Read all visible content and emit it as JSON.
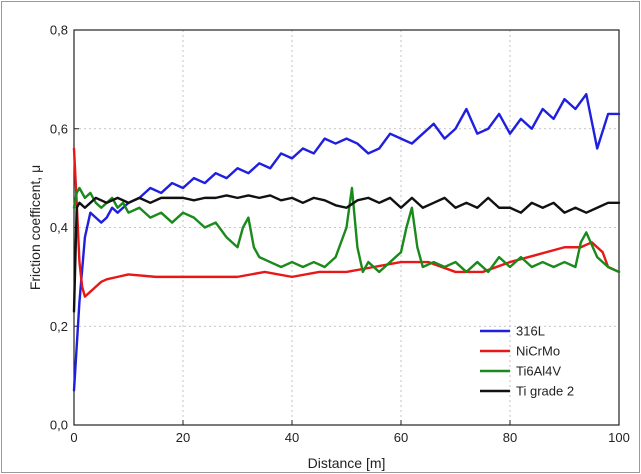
{
  "chart_data": {
    "type": "line",
    "title": "",
    "xlabel": "Distance [m]",
    "ylabel": "Friction coefficent, μ",
    "xlim": [
      0,
      100
    ],
    "ylim": [
      0,
      0.8
    ],
    "xticks": [
      0,
      20,
      40,
      60,
      80,
      100
    ],
    "xtick_labels": [
      "0",
      "20",
      "40",
      "60",
      "80",
      "100"
    ],
    "yticks": [
      0,
      0.2,
      0.4,
      0.6,
      0.8
    ],
    "ytick_labels": [
      "0,0",
      "0,2",
      "0,4",
      "0,6",
      "0,8"
    ],
    "grid": "dashed",
    "legend_position": "bottom-right",
    "series": [
      {
        "name": "316L",
        "color": "#1f1fe0",
        "x": [
          0,
          1,
          2,
          3,
          4,
          5,
          6,
          7,
          8,
          9,
          10,
          12,
          14,
          16,
          18,
          20,
          22,
          24,
          26,
          28,
          30,
          32,
          34,
          36,
          38,
          40,
          42,
          44,
          46,
          48,
          50,
          52,
          54,
          56,
          58,
          60,
          62,
          64,
          66,
          68,
          70,
          72,
          74,
          76,
          78,
          80,
          82,
          84,
          86,
          88,
          90,
          92,
          94,
          96,
          98,
          100
        ],
        "y": [
          0.07,
          0.25,
          0.38,
          0.43,
          0.42,
          0.41,
          0.42,
          0.44,
          0.43,
          0.44,
          0.45,
          0.46,
          0.48,
          0.47,
          0.49,
          0.48,
          0.5,
          0.49,
          0.51,
          0.5,
          0.52,
          0.51,
          0.53,
          0.52,
          0.55,
          0.54,
          0.56,
          0.55,
          0.58,
          0.57,
          0.58,
          0.57,
          0.55,
          0.56,
          0.59,
          0.58,
          0.57,
          0.59,
          0.61,
          0.58,
          0.6,
          0.64,
          0.59,
          0.6,
          0.63,
          0.59,
          0.62,
          0.6,
          0.64,
          0.62,
          0.66,
          0.64,
          0.67,
          0.56,
          0.63,
          0.63
        ]
      },
      {
        "name": "NiCrMo",
        "color": "#e81818",
        "x": [
          0,
          0.5,
          1,
          1.5,
          2,
          3,
          4,
          5,
          6,
          8,
          10,
          15,
          20,
          25,
          30,
          35,
          40,
          45,
          50,
          55,
          60,
          65,
          70,
          75,
          80,
          85,
          90,
          93,
          95,
          97,
          98,
          100
        ],
        "y": [
          0.56,
          0.45,
          0.33,
          0.28,
          0.26,
          0.27,
          0.28,
          0.29,
          0.295,
          0.3,
          0.305,
          0.3,
          0.3,
          0.3,
          0.3,
          0.31,
          0.3,
          0.31,
          0.31,
          0.32,
          0.33,
          0.33,
          0.31,
          0.31,
          0.33,
          0.345,
          0.36,
          0.36,
          0.37,
          0.35,
          0.32,
          0.31
        ]
      },
      {
        "name": "Ti6Al4V",
        "color": "#1a8a1a",
        "x": [
          0,
          0.5,
          1,
          2,
          3,
          4,
          5,
          6,
          7,
          8,
          9,
          10,
          12,
          14,
          16,
          18,
          20,
          22,
          24,
          26,
          28,
          30,
          31,
          32,
          33,
          34,
          36,
          38,
          40,
          42,
          44,
          46,
          48,
          50,
          51,
          52,
          53,
          54,
          56,
          58,
          60,
          61,
          62,
          63,
          64,
          66,
          68,
          70,
          72,
          74,
          76,
          78,
          80,
          82,
          84,
          86,
          88,
          90,
          92,
          93,
          94,
          96,
          98,
          100
        ],
        "y": [
          0.44,
          0.47,
          0.48,
          0.46,
          0.47,
          0.45,
          0.44,
          0.45,
          0.46,
          0.44,
          0.45,
          0.43,
          0.44,
          0.42,
          0.43,
          0.41,
          0.43,
          0.42,
          0.4,
          0.41,
          0.38,
          0.36,
          0.4,
          0.42,
          0.36,
          0.34,
          0.33,
          0.32,
          0.33,
          0.32,
          0.33,
          0.32,
          0.34,
          0.4,
          0.48,
          0.36,
          0.31,
          0.33,
          0.31,
          0.33,
          0.35,
          0.4,
          0.44,
          0.36,
          0.32,
          0.33,
          0.32,
          0.33,
          0.31,
          0.33,
          0.31,
          0.34,
          0.32,
          0.34,
          0.32,
          0.33,
          0.32,
          0.33,
          0.32,
          0.37,
          0.39,
          0.34,
          0.32,
          0.31
        ]
      },
      {
        "name": "Ti grade 2",
        "color": "#111111",
        "x": [
          0,
          0.5,
          1,
          2,
          3,
          4,
          6,
          8,
          10,
          12,
          14,
          16,
          18,
          20,
          22,
          24,
          26,
          28,
          30,
          32,
          34,
          36,
          38,
          40,
          42,
          44,
          46,
          48,
          50,
          52,
          54,
          56,
          58,
          60,
          62,
          64,
          66,
          68,
          70,
          72,
          74,
          76,
          78,
          80,
          82,
          84,
          86,
          88,
          90,
          92,
          94,
          96,
          98,
          100
        ],
        "y": [
          0.23,
          0.44,
          0.45,
          0.44,
          0.45,
          0.46,
          0.45,
          0.46,
          0.45,
          0.46,
          0.45,
          0.46,
          0.46,
          0.46,
          0.455,
          0.46,
          0.46,
          0.465,
          0.46,
          0.465,
          0.46,
          0.465,
          0.455,
          0.46,
          0.45,
          0.46,
          0.455,
          0.445,
          0.44,
          0.455,
          0.46,
          0.45,
          0.46,
          0.44,
          0.46,
          0.44,
          0.45,
          0.46,
          0.44,
          0.45,
          0.44,
          0.46,
          0.44,
          0.44,
          0.43,
          0.45,
          0.44,
          0.45,
          0.43,
          0.44,
          0.43,
          0.44,
          0.45,
          0.45
        ]
      }
    ]
  }
}
